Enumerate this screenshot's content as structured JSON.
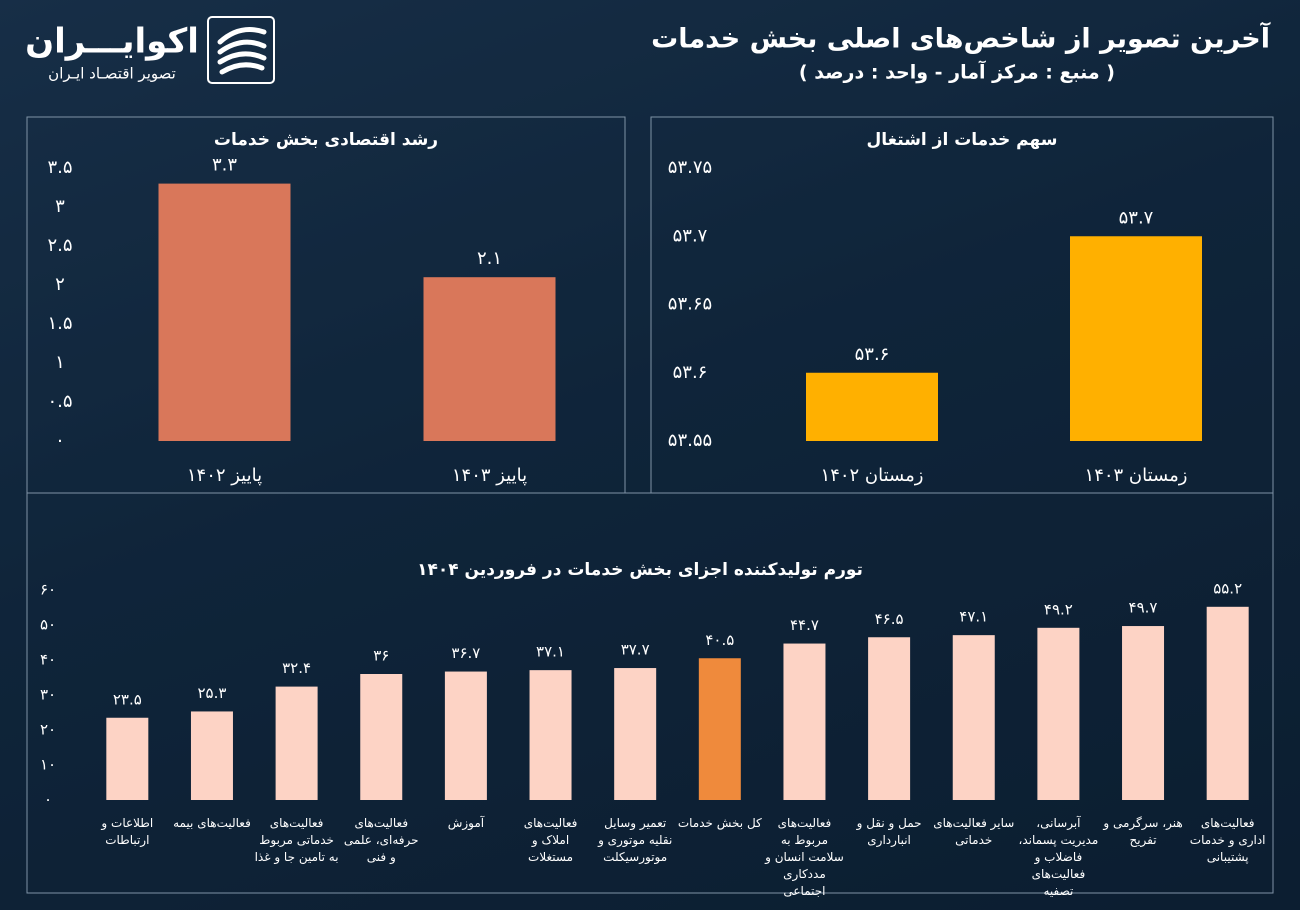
{
  "header": {
    "title": "آخرین تصویر از شاخص‌های اصلی بخش خدمات",
    "subtitle": "( منبع : مرکز آمار - واحد : درصد )",
    "brand": "اکوایـــران",
    "tagline": "تصویر اقتصـاد ایـران"
  },
  "chart_data": [
    {
      "type": "bar",
      "title": "رشد اقتصادی بخش خدمات",
      "categories": [
        "پاییز ۱۴۰۲",
        "پاییز ۱۴۰۳"
      ],
      "values": [
        3.3,
        2.1
      ],
      "value_labels": [
        "۳.۳",
        "۲.۱"
      ],
      "color": "#d9775a",
      "ylim": [
        0,
        3.5
      ],
      "yticks": [
        {
          "value": 0,
          "label": "۰"
        },
        {
          "value": 0.5,
          "label": "۰.۵"
        },
        {
          "value": 1,
          "label": "۱"
        },
        {
          "value": 1.5,
          "label": "۱.۵"
        },
        {
          "value": 2,
          "label": "۲"
        },
        {
          "value": 2.5,
          "label": "۲.۵"
        },
        {
          "value": 3,
          "label": "۳"
        },
        {
          "value": 3.5,
          "label": "۳.۵"
        }
      ]
    },
    {
      "type": "bar",
      "title": "سهم خدمات از اشتغال",
      "categories": [
        "زمستان ۱۴۰۲",
        "زمستان ۱۴۰۳"
      ],
      "values": [
        53.6,
        53.7
      ],
      "value_labels": [
        "۵۳.۶",
        "۵۳.۷"
      ],
      "color": "#ffb000",
      "ylim": [
        53.55,
        53.75
      ],
      "yticks": [
        {
          "value": 53.55,
          "label": "۵۳.۵۵"
        },
        {
          "value": 53.6,
          "label": "۵۳.۶"
        },
        {
          "value": 53.65,
          "label": "۵۳.۶۵"
        },
        {
          "value": 53.7,
          "label": "۵۳.۷"
        },
        {
          "value": 53.75,
          "label": "۵۳.۷۵"
        }
      ]
    },
    {
      "type": "bar",
      "title": "تورم تولیدکننده اجزای بخش خدمات در فروردین ۱۴۰۴",
      "categories": [
        "اطلاعات و ارتباطات",
        "فعالیت‌های بیمه",
        "فعالیت‌های خدماتی مربوط به تامین جا و غذا",
        "فعالیت‌های حرفه‌ای، علمی و فنی",
        "آموزش",
        "فعالیت‌های املاک و مستغلات",
        "تعمیر وسایل نقلیه موتوری و موتورسیکلت",
        "کل بخش خدمات",
        "فعالیت‌های مربوط به سلامت انسان و مددکاری اجتماعی",
        "حمل و نقل و انبارداری",
        "سایر فعالیت‌های خدماتی",
        "آبرسانی، مدیریت پسماند، فاضلاب و فعالیت‌های تصفیه",
        "هنر، سرگرمی و تفریح",
        "فعالیت‌های اداری و خدمات پشتیبانی"
      ],
      "values": [
        23.5,
        25.3,
        32.4,
        36,
        36.7,
        37.1,
        37.7,
        40.5,
        44.7,
        46.5,
        47.1,
        49.2,
        49.7,
        55.2
      ],
      "value_labels": [
        "۲۳.۵",
        "۲۵.۳",
        "۳۲.۴",
        "۳۶",
        "۳۶.۷",
        "۳۷.۱",
        "۳۷.۷",
        "۴۰.۵",
        "۴۴.۷",
        "۴۶.۵",
        "۴۷.۱",
        "۴۹.۲",
        "۴۹.۷",
        "۵۵.۲"
      ],
      "colors": [
        "#fdd3c5",
        "#fdd3c5",
        "#fdd3c5",
        "#fdd3c5",
        "#fdd3c5",
        "#fdd3c5",
        "#fdd3c5",
        "#ef8a3c",
        "#fdd3c5",
        "#fdd3c5",
        "#fdd3c5",
        "#fdd3c5",
        "#fdd3c5",
        "#fdd3c5"
      ],
      "ylim": [
        0,
        60
      ],
      "yticks": [
        {
          "value": 0,
          "label": "۰"
        },
        {
          "value": 10,
          "label": "۱۰"
        },
        {
          "value": 20,
          "label": "۲۰"
        },
        {
          "value": 30,
          "label": "۳۰"
        },
        {
          "value": 40,
          "label": "۴۰"
        },
        {
          "value": 50,
          "label": "۵۰"
        },
        {
          "value": 60,
          "label": "۶۰"
        }
      ]
    }
  ]
}
